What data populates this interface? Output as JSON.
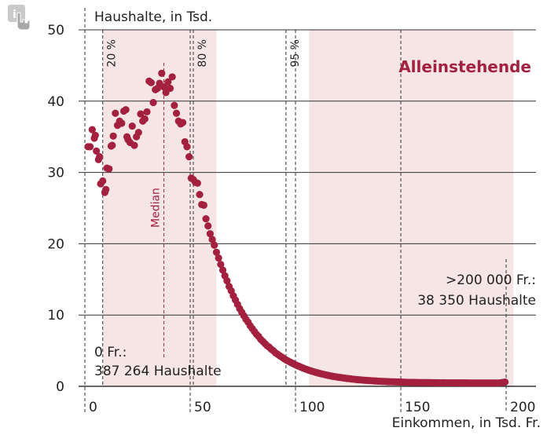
{
  "chart_data": {
    "type": "scatter",
    "title": "",
    "ylabel": "Haushalte, in Tsd.",
    "xlabel": "Einkommen, in Tsd. Fr.",
    "series_label": "Alleinstehende",
    "xlim": [
      -5,
      200
    ],
    "ylim": [
      0,
      50
    ],
    "x_ticks": [
      0,
      50,
      100,
      150,
      200
    ],
    "y_ticks": [
      0,
      10,
      20,
      30,
      40,
      50
    ],
    "grid": true,
    "bands": [
      {
        "from": 4,
        "to": 58,
        "label": "80 % band"
      },
      {
        "from": 102,
        "to": 199,
        "label": "95 % band"
      }
    ],
    "percentile_lines": [
      {
        "x": 4,
        "label": "20 %"
      },
      {
        "x": 47,
        "label": "80 %"
      },
      {
        "x": 91,
        "label": "95 %"
      }
    ],
    "median": {
      "x": 33,
      "label": "Median"
    },
    "annotations": {
      "zero": {
        "line1": "0 Fr.:",
        "line2": "387 264 Haushalte",
        "x": 0
      },
      "over": {
        "line1": ">200 000 Fr.:",
        "line2": "38 350 Haushalte",
        "x": 195
      }
    },
    "points": [
      [
        -3,
        33.6
      ],
      [
        -2,
        33.6
      ],
      [
        -1,
        36.0
      ],
      [
        0,
        34.8
      ],
      [
        0.5,
        35.2
      ],
      [
        1,
        33.0
      ],
      [
        2,
        31.8
      ],
      [
        2.5,
        32.2
      ],
      [
        3,
        28.4
      ],
      [
        4,
        28.8
      ],
      [
        5,
        27.2
      ],
      [
        5.5,
        27.6
      ],
      [
        6,
        30.6
      ],
      [
        7,
        30.5
      ],
      [
        8,
        33.7
      ],
      [
        8.5,
        33.8
      ],
      [
        9,
        35.1
      ],
      [
        10,
        38.3
      ],
      [
        11,
        36.6
      ],
      [
        12,
        37.2
      ],
      [
        13,
        36.9
      ],
      [
        14,
        38.6
      ],
      [
        15,
        38.8
      ],
      [
        15.5,
        35.0
      ],
      [
        16,
        34.6
      ],
      [
        17,
        34.2
      ],
      [
        18,
        36.5
      ],
      [
        19,
        33.8
      ],
      [
        20,
        35.0
      ],
      [
        21,
        35.6
      ],
      [
        22,
        38.2
      ],
      [
        23,
        37.2
      ],
      [
        24,
        37.5
      ],
      [
        25,
        38.5
      ],
      [
        26,
        42.8
      ],
      [
        27,
        42.6
      ],
      [
        28,
        39.8
      ],
      [
        29,
        41.6
      ],
      [
        30,
        41.8
      ],
      [
        31,
        42.5
      ],
      [
        32,
        43.9
      ],
      [
        33,
        42.0
      ],
      [
        34,
        41.2
      ],
      [
        35,
        42.7
      ],
      [
        36,
        41.8
      ],
      [
        37,
        43.4
      ],
      [
        38,
        39.4
      ],
      [
        39,
        38.3
      ],
      [
        40,
        37.2
      ],
      [
        41,
        36.8
      ],
      [
        42,
        37.0
      ],
      [
        43,
        34.3
      ],
      [
        44,
        33.6
      ],
      [
        45,
        32.2
      ],
      [
        46,
        29.2
      ],
      [
        47,
        29.0
      ],
      [
        48,
        28.6
      ],
      [
        49,
        28.5
      ],
      [
        50,
        26.9
      ],
      [
        51,
        25.5
      ],
      [
        52,
        25.4
      ],
      [
        53,
        23.5
      ],
      [
        54,
        22.5
      ],
      [
        55,
        21.4
      ],
      [
        56,
        20.6
      ],
      [
        57,
        19.8
      ],
      [
        58,
        18.8
      ],
      [
        59,
        18.0
      ],
      [
        60,
        17.1
      ],
      [
        61,
        16.3
      ],
      [
        62,
        15.5
      ],
      [
        63,
        14.8
      ],
      [
        64,
        14.0
      ],
      [
        65,
        13.4
      ],
      [
        66,
        12.7
      ],
      [
        67,
        12.1
      ],
      [
        68,
        11.5
      ],
      [
        69,
        10.9
      ],
      [
        70,
        10.4
      ],
      [
        71,
        9.9
      ],
      [
        72,
        9.4
      ],
      [
        73,
        9.0
      ],
      [
        74,
        8.5
      ],
      [
        75,
        8.1
      ],
      [
        76,
        7.7
      ],
      [
        77,
        7.3
      ],
      [
        78,
        7.0
      ],
      [
        79,
        6.6
      ],
      [
        80,
        6.3
      ],
      [
        81,
        6.0
      ],
      [
        82,
        5.7
      ],
      [
        83,
        5.5
      ],
      [
        84,
        5.2
      ],
      [
        85,
        5.0
      ],
      [
        86,
        4.7
      ],
      [
        87,
        4.5
      ],
      [
        88,
        4.3
      ],
      [
        89,
        4.1
      ],
      [
        90,
        3.9
      ],
      [
        91,
        3.7
      ],
      [
        92,
        3.55
      ],
      [
        93,
        3.4
      ],
      [
        94,
        3.25
      ],
      [
        95,
        3.1
      ],
      [
        96,
        2.95
      ],
      [
        97,
        2.82
      ],
      [
        98,
        2.7
      ],
      [
        99,
        2.58
      ],
      [
        100,
        2.46
      ],
      [
        101,
        2.35
      ],
      [
        102,
        2.25
      ],
      [
        103,
        2.15
      ],
      [
        104,
        2.06
      ],
      [
        105,
        1.97
      ],
      [
        106,
        1.89
      ],
      [
        107,
        1.81
      ],
      [
        108,
        1.74
      ],
      [
        109,
        1.67
      ],
      [
        110,
        1.6
      ],
      [
        111,
        1.54
      ],
      [
        112,
        1.48
      ],
      [
        113,
        1.42
      ],
      [
        114,
        1.37
      ],
      [
        115,
        1.32
      ],
      [
        116,
        1.27
      ],
      [
        117,
        1.23
      ],
      [
        118,
        1.18
      ],
      [
        119,
        1.14
      ],
      [
        120,
        1.1
      ],
      [
        121,
        1.07
      ],
      [
        122,
        1.03
      ],
      [
        123,
        1.0
      ],
      [
        124,
        0.97
      ],
      [
        125,
        0.94
      ],
      [
        126,
        0.91
      ],
      [
        127,
        0.89
      ],
      [
        128,
        0.86
      ],
      [
        129,
        0.84
      ],
      [
        130,
        0.82
      ],
      [
        131,
        0.8
      ],
      [
        132,
        0.78
      ],
      [
        133,
        0.76
      ],
      [
        134,
        0.74
      ],
      [
        135,
        0.72
      ],
      [
        136,
        0.71
      ],
      [
        137,
        0.69
      ],
      [
        138,
        0.68
      ],
      [
        139,
        0.66
      ],
      [
        140,
        0.65
      ],
      [
        141,
        0.64
      ],
      [
        142,
        0.63
      ],
      [
        143,
        0.62
      ],
      [
        144,
        0.61
      ],
      [
        145,
        0.6
      ],
      [
        146,
        0.59
      ],
      [
        147,
        0.58
      ],
      [
        148,
        0.57
      ],
      [
        149,
        0.56
      ],
      [
        150,
        0.56
      ],
      [
        151,
        0.55
      ],
      [
        152,
        0.55
      ],
      [
        153,
        0.54
      ],
      [
        154,
        0.54
      ],
      [
        155,
        0.53
      ],
      [
        156,
        0.53
      ],
      [
        157,
        0.52
      ],
      [
        158,
        0.52
      ],
      [
        159,
        0.52
      ],
      [
        160,
        0.51
      ],
      [
        161,
        0.51
      ],
      [
        162,
        0.51
      ],
      [
        163,
        0.5
      ],
      [
        164,
        0.5
      ],
      [
        165,
        0.5
      ],
      [
        166,
        0.5
      ],
      [
        167,
        0.49
      ],
      [
        168,
        0.49
      ],
      [
        169,
        0.49
      ],
      [
        170,
        0.49
      ],
      [
        171,
        0.49
      ],
      [
        172,
        0.48
      ],
      [
        173,
        0.48
      ],
      [
        174,
        0.48
      ],
      [
        175,
        0.48
      ],
      [
        176,
        0.48
      ],
      [
        177,
        0.48
      ],
      [
        178,
        0.47
      ],
      [
        179,
        0.47
      ],
      [
        180,
        0.47
      ],
      [
        181,
        0.47
      ],
      [
        182,
        0.47
      ],
      [
        183,
        0.47
      ],
      [
        184,
        0.47
      ],
      [
        185,
        0.47
      ],
      [
        186,
        0.47
      ],
      [
        187,
        0.47
      ],
      [
        188,
        0.47
      ],
      [
        189,
        0.47
      ],
      [
        190,
        0.47
      ],
      [
        191,
        0.47
      ],
      [
        192,
        0.47
      ],
      [
        193,
        0.5
      ],
      [
        194,
        0.55
      ],
      [
        195,
        0.6
      ]
    ],
    "colors": {
      "point": "#a3203f",
      "band": "#f5e6e5",
      "median": "#a3203f",
      "label": "#a3203f"
    }
  }
}
